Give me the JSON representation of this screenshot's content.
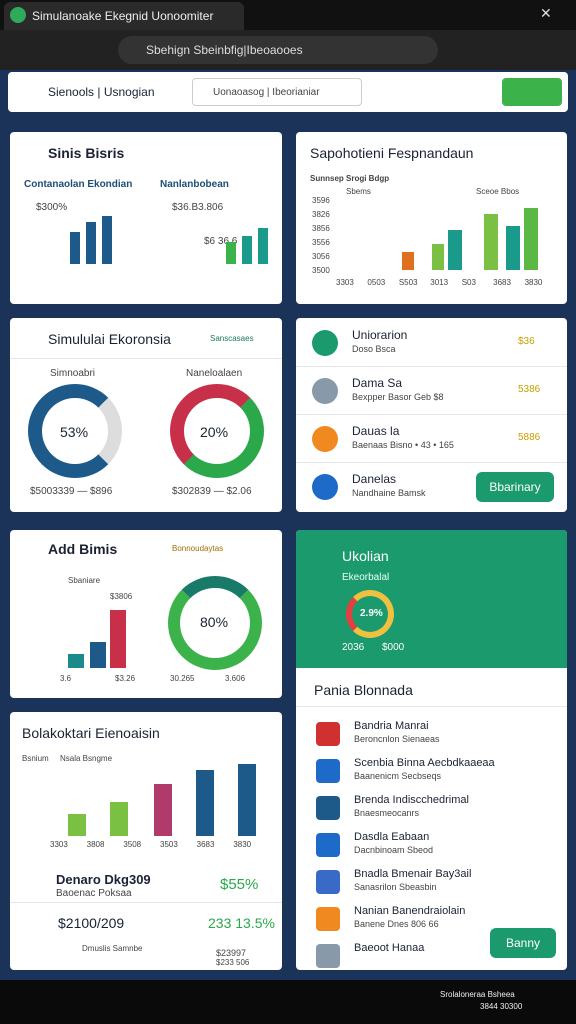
{
  "browser": {
    "tab_title": "Simulanoake Ekegnid Uonoomiter",
    "url": "Sbehign Sbeinbfig|Ibeoaooes"
  },
  "toolbar": {
    "brand": "Sienools | Usnogian",
    "search": "Uonaoasog | Ibeorianiar"
  },
  "cards": {
    "business": {
      "title": "Sinis Bisris",
      "left_label": "Contanaolan Ekondian",
      "left_value": "$300%",
      "right_label": "Nanlanbobean",
      "right_value": "$36.B3.806",
      "right_note": "$6 36 6"
    },
    "report": {
      "title": "Sapohotieni Fespnandaun",
      "chart_title": "Sunnsep Srogi Bdgp",
      "legend_a": "Sbems",
      "legend_b": "Sceoe Bbos",
      "y_labels": [
        "3596",
        "3826",
        "3856",
        "3556",
        "3056",
        "3500"
      ],
      "x_labels": [
        "3303",
        "0503",
        "S503",
        "3013",
        "S03",
        "3683",
        "3830"
      ]
    },
    "simulation": {
      "title": "Simululai Ekoronsia",
      "link": "Sanscasaes",
      "donut_a": {
        "label": "Simnoabri",
        "value": "53%",
        "footer": "$5003339 — $896"
      },
      "donut_b": {
        "label": "Naneloalaen",
        "value": "20%",
        "footer": "$302839 — $2.06"
      }
    },
    "list": {
      "items": [
        {
          "title": "Uniorarion",
          "sub": "Doso Bsca",
          "value": "$36"
        },
        {
          "title": "Dama Sa",
          "sub": "Bexpper Basor Geb $8",
          "value": "5386"
        },
        {
          "title": "Dauas la",
          "sub": "Baenaas Bisno • 43 • 165",
          "value": "5886"
        },
        {
          "title": "Danelas",
          "sub": "Nandhaine Bamsk",
          "value": "Bbarinary"
        }
      ]
    },
    "add": {
      "title": "Add Bimis",
      "tag": "Bonnoudaytas",
      "legend_a": "Sbaniare",
      "legend_b": "$3806",
      "value": "80%",
      "footer": [
        "3.6",
        "$3.26",
        "30.265",
        "3.606"
      ]
    },
    "green": {
      "title": "Ukolian",
      "sub": "Ekeorbalal",
      "value": "2.9%",
      "footer": [
        "2036",
        "$000"
      ]
    },
    "plans": {
      "title": "Pania Blonnada",
      "items": [
        {
          "title": "Bandria Manrai",
          "sub": "Beroncnlon Sienaeas"
        },
        {
          "title": "Scenbia Binna Aecbdkaaeaa",
          "sub": "Baanenicm Secbseqs"
        },
        {
          "title": "Brenda Indiscchedrimal",
          "sub": "Bnaesmeocanrs"
        },
        {
          "title": "Dasdla Eabaan",
          "sub": "Dacnbinoam Sbeod"
        },
        {
          "title": "Bnadla Bmenair Bay3ail",
          "sub": "Sanasrilon Sbeasbin"
        },
        {
          "title": "Nanian Banendraiolain",
          "sub": "Banene Dnes 806 66"
        },
        {
          "title": "Baeoot Hanaa",
          "sub": ""
        }
      ],
      "button": "Banny"
    },
    "economy": {
      "title": "Bolakoktari Eienoaisin",
      "legend_a": "Bsnium",
      "legend_b": "Nsala Bsngme",
      "x_labels": [
        "3303",
        "3808",
        "3508",
        "3503",
        "3683",
        "3830"
      ],
      "row1_title": "Denaro Dkg309",
      "row1_sub": "Baoenac Poksaa",
      "row1_value": "$55%",
      "row2_title": "$2100/209",
      "row2_value": "233 13.5%",
      "bottom_a": "Dmuslis Samnbe",
      "bottom_b": "$23997",
      "bottom_c": "$233 506"
    }
  },
  "taskbar": {
    "line1": "Srolaloneraa Bsheea",
    "line2": "3844 30300"
  }
}
